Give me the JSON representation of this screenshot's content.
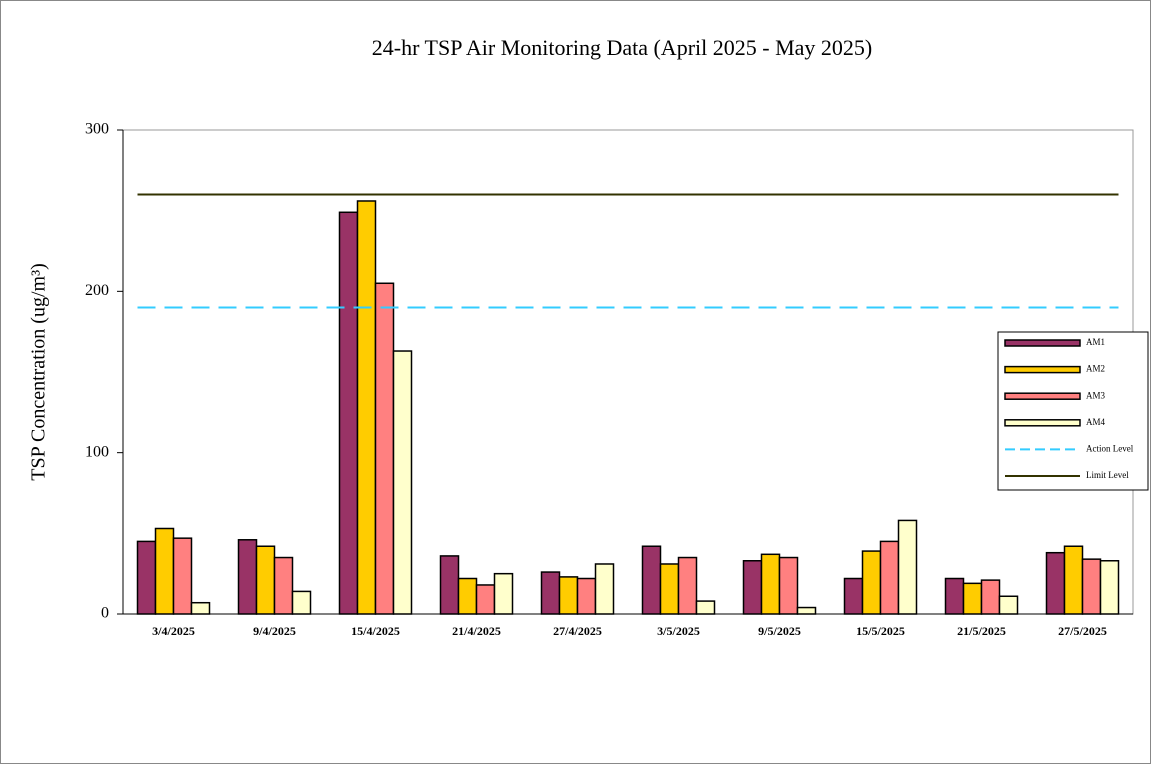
{
  "chart_data": {
    "type": "bar",
    "title": "24-hr TSP Air Monitoring Data (April 2025 - May 2025)",
    "y_label": "TSP Concentration (ug/m³)",
    "categories": [
      "3/4/2025",
      "9/4/2025",
      "15/4/2025",
      "21/4/2025",
      "27/4/2025",
      "3/5/2025",
      "9/5/2025",
      "15/5/2025",
      "21/5/2025",
      "27/5/2025"
    ],
    "series": [
      {
        "name": "AM1",
        "color": "#993366",
        "values": [
          45,
          46,
          249,
          36,
          26,
          42,
          33,
          22,
          22,
          38
        ]
      },
      {
        "name": "AM2",
        "color": "#ffcc00",
        "values": [
          53,
          42,
          256,
          22,
          23,
          31,
          37,
          39,
          19,
          42
        ]
      },
      {
        "name": "AM3",
        "color": "#ff8080",
        "values": [
          47,
          35,
          205,
          18,
          22,
          35,
          35,
          45,
          21,
          34
        ]
      },
      {
        "name": "AM4",
        "color": "#ffffcc",
        "values": [
          7,
          14,
          163,
          25,
          31,
          8,
          4,
          58,
          11,
          33
        ]
      }
    ],
    "reference_lines": [
      {
        "name": "Action Level",
        "value": 190,
        "color": "#33ccff",
        "style": "dashed"
      },
      {
        "name": "Limit Level",
        "value": 260,
        "color": "#333300",
        "style": "solid"
      }
    ],
    "ylim": [
      0,
      300
    ],
    "yticks": [
      0,
      100,
      200,
      300
    ],
    "legend": "right"
  }
}
